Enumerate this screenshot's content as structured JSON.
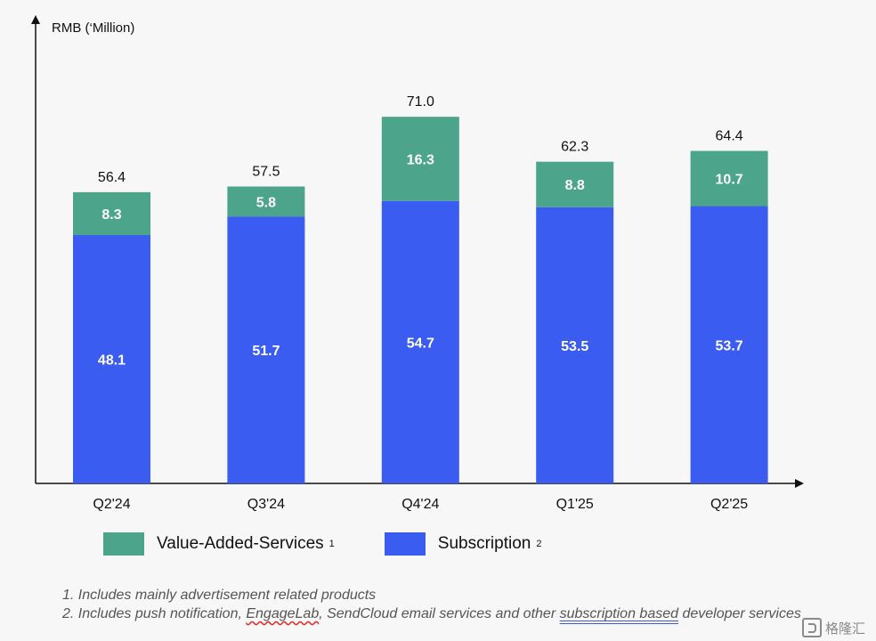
{
  "chart_data": {
    "type": "bar",
    "stacked": true,
    "ylabel": "RMB (‘Million)",
    "xlabel": "",
    "ylim": [
      0,
      80
    ],
    "categories": [
      "Q2'24",
      "Q3'24",
      "Q4'24",
      "Q1'25",
      "Q2'25"
    ],
    "series": [
      {
        "name": "Subscription",
        "color": "#3a5cf0",
        "values": [
          48.1,
          51.7,
          54.7,
          53.5,
          53.7
        ]
      },
      {
        "name": "Value-Added-Services",
        "color": "#4ca58a",
        "values": [
          8.3,
          5.8,
          16.3,
          8.8,
          10.7
        ]
      }
    ],
    "totals": [
      "56.4",
      "57.5",
      "71.0",
      "62.3",
      "64.4"
    ],
    "legend": [
      {
        "label": "Value-Added-Services",
        "sup": "1",
        "color": "#4ca58a"
      },
      {
        "label": "Subscription",
        "sup": "2",
        "color": "#3a5cf0"
      }
    ],
    "legend_position": "bottom"
  },
  "footnotes": {
    "line1": "1. Includes mainly advertisement related products",
    "line2_a": "2. Includes push notification, ",
    "line2_b": "EngageLab",
    "line2_c": ", SendCloud email services and other ",
    "line2_d": "subscription based",
    "line2_e": " developer services"
  },
  "watermark": {
    "text": "格隆汇",
    "icon": "gelonghui-logo-icon"
  }
}
